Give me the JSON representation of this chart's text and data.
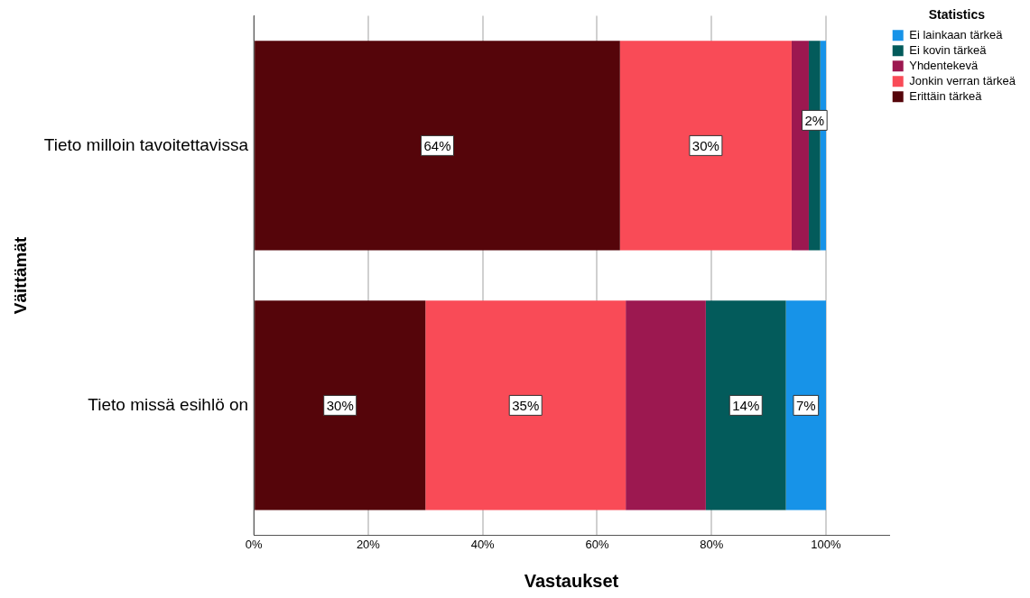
{
  "chart_data": {
    "type": "bar",
    "orientation": "horizontal",
    "stacked": true,
    "xlabel": "Vastaukset",
    "ylabel": "Väittämät",
    "legend_title": "Statistics",
    "legend": "top right",
    "grid": "x",
    "categories": [
      "Tieto milloin tavoitettavissa",
      "Tieto missä esihlö on"
    ],
    "xlim": [
      0,
      111
    ],
    "xticks": [
      {
        "value": 0,
        "label": "0%"
      },
      {
        "value": 20,
        "label": "20%"
      },
      {
        "value": 40,
        "label": "40%"
      },
      {
        "value": 60,
        "label": "60%"
      },
      {
        "value": 80,
        "label": "80%"
      },
      {
        "value": 100,
        "label": "100%"
      }
    ],
    "series": [
      {
        "name": "Erittäin tärkeä",
        "color": "#55050a",
        "values": [
          64,
          30
        ],
        "value_labels": [
          "64%",
          "30%"
        ]
      },
      {
        "name": "Jonkin verran tärkeä",
        "color": "#f94b57",
        "values": [
          30,
          35
        ],
        "value_labels": [
          "30%",
          "35%"
        ]
      },
      {
        "name": "Yhdentekevä",
        "color": "#9c1850",
        "values": [
          3,
          14
        ],
        "value_labels": [
          null,
          null
        ]
      },
      {
        "name": "Ei kovin tärkeä",
        "color": "#035b5b",
        "values": [
          2,
          14
        ],
        "value_labels": [
          "2%",
          "14%"
        ]
      },
      {
        "name": "Ei lainkaan tärkeä",
        "color": "#1793e8",
        "values": [
          1,
          7
        ],
        "value_labels": [
          null,
          "7%"
        ]
      }
    ]
  }
}
